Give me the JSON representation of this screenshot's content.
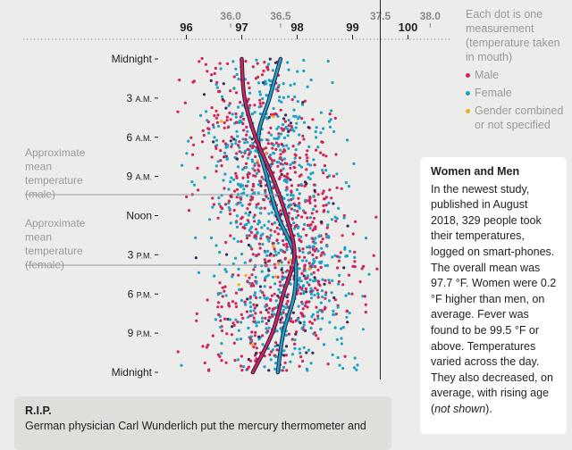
{
  "chart_data": {
    "type": "scatter",
    "x_axis_f_ticks": [
      "96",
      "97",
      "98",
      "99",
      "100"
    ],
    "x_axis_c_ticks": [
      "36.0",
      "36.5",
      "37.5",
      "38.0"
    ],
    "y_axis_labels": [
      {
        "main": "Midnight",
        "suffix": ""
      },
      {
        "main": "3 ",
        "suffix": "A.M."
      },
      {
        "main": "6 ",
        "suffix": "A.M."
      },
      {
        "main": "9 ",
        "suffix": "A.M."
      },
      {
        "main": "Noon",
        "suffix": ""
      },
      {
        "main": "3 ",
        "suffix": "P.M."
      },
      {
        "main": "6 ",
        "suffix": "P.M."
      },
      {
        "main": "9 ",
        "suffix": "P.M."
      },
      {
        "main": "Midnight",
        "suffix": ""
      }
    ],
    "fever_threshold_f": 99.5,
    "mean_male_label": [
      "Approximate",
      "mean",
      "temperature",
      "(male)"
    ],
    "mean_female_label": [
      "Approximate",
      "mean",
      "temperature",
      "(female)"
    ],
    "series": [
      {
        "name": "Male",
        "color": "#d1235a",
        "mean_curve": [
          [
            0,
            97.0
          ],
          [
            3,
            97.05
          ],
          [
            6,
            97.25
          ],
          [
            9,
            97.55
          ],
          [
            12,
            97.8
          ],
          [
            15,
            97.95
          ],
          [
            18,
            97.75
          ],
          [
            21,
            97.55
          ],
          [
            24,
            97.2
          ]
        ]
      },
      {
        "name": "Female",
        "color": "#1ba3c6",
        "mean_curve": [
          [
            0,
            97.7
          ],
          [
            3,
            97.5
          ],
          [
            6,
            97.3
          ],
          [
            9,
            97.45
          ],
          [
            12,
            97.65
          ],
          [
            15,
            97.95
          ],
          [
            18,
            97.95
          ],
          [
            21,
            97.75
          ],
          [
            24,
            97.65
          ]
        ]
      },
      {
        "name": "Gender combined or not specified",
        "color": "#f2a91a",
        "mean_curve": []
      }
    ]
  },
  "legend": {
    "title": "Each dot is one measurement (temperature taken in mouth)",
    "items": [
      {
        "label": "Male",
        "color": "#d1235a"
      },
      {
        "label": "Female",
        "color": "#1ba3c6"
      },
      {
        "label": "Gender combined or not specified",
        "color": "#f2a91a"
      }
    ]
  },
  "women_men": {
    "title": "Women and Men",
    "body_pre": "In the newest study, published in August 2018, 329 people took their temperatures, logged on smart-phones. The overall mean was 97.7 °F. Women were 0.2 °F higher than men, on average. Fever was found to be 99.5 °F or above. Temperatures varied across the day. They also decreased, on average, with rising age (",
    "body_em": "not shown",
    "body_post": ")."
  },
  "rip": {
    "title": "R.I.P.",
    "text": "German physician Carl Wunderlich put the mercury thermometer and"
  }
}
